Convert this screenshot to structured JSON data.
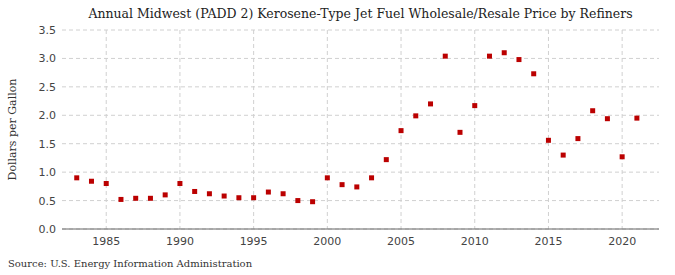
{
  "chart_data": {
    "type": "scatter",
    "title": "Annual Midwest (PADD 2) Kerosene-Type Jet Fuel Wholesale/Resale Price by Refiners",
    "ylabel": "Dollars per Gallon",
    "annotations": [
      "Source: U.S. Energy Information Administration"
    ],
    "x": [
      1983,
      1984,
      1985,
      1986,
      1987,
      1988,
      1989,
      1990,
      1991,
      1992,
      1993,
      1994,
      1995,
      1996,
      1997,
      1998,
      1999,
      2000,
      2001,
      2002,
      2003,
      2004,
      2005,
      2006,
      2007,
      2008,
      2009,
      2010,
      2011,
      2012,
      2013,
      2014,
      2015,
      2016,
      2017,
      2018,
      2019,
      2020,
      2021
    ],
    "values": [
      0.9,
      0.84,
      0.8,
      0.52,
      0.54,
      0.54,
      0.6,
      0.8,
      0.66,
      0.62,
      0.58,
      0.55,
      0.55,
      0.65,
      0.62,
      0.5,
      0.48,
      0.9,
      0.78,
      0.74,
      0.9,
      1.22,
      1.73,
      1.99,
      2.2,
      3.04,
      1.7,
      2.17,
      3.04,
      3.1,
      2.98,
      2.73,
      1.56,
      1.3,
      1.59,
      2.08,
      1.94,
      1.27,
      1.95
    ],
    "color": "#bb0000",
    "marker": "square",
    "xlim": [
      1982,
      2022.5
    ],
    "xticks": [
      1985,
      1990,
      1995,
      2000,
      2005,
      2010,
      2015,
      2020
    ],
    "ylim": [
      0.0,
      3.5
    ],
    "yticks": [
      {
        "value": 0,
        "label": "0.0"
      },
      0.5,
      {
        "value": 1,
        "label": "1.0"
      },
      1.5,
      {
        "value": 2,
        "label": "2.0"
      },
      2.5,
      {
        "value": 3,
        "label": "3.0"
      },
      3.5
    ],
    "grid": true
  }
}
